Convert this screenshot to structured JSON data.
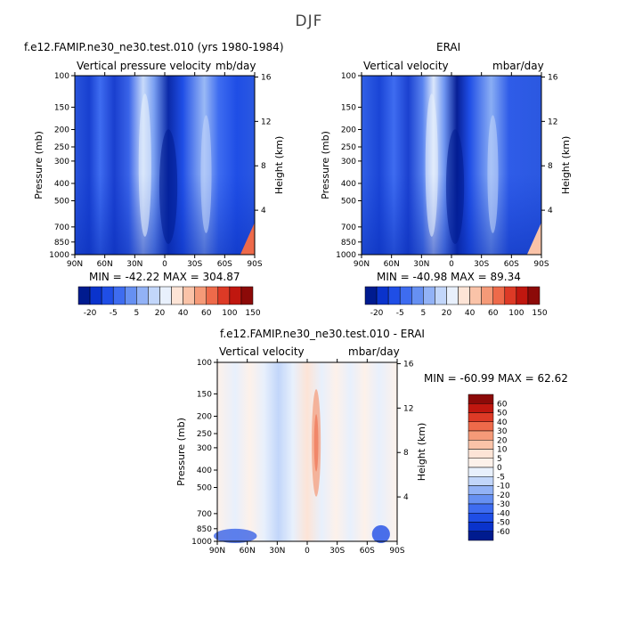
{
  "title": "DJF",
  "panels": [
    {
      "id": "model",
      "title": "f.e12.FAMIP.ne30_ne30.test.010 (yrs 1980-1984)",
      "left_label": "Vertical pressure velocity",
      "right_label": "mb/day",
      "stats": "MIN = -42.22   MAX = 304.87"
    },
    {
      "id": "obs",
      "title": "ERAI",
      "left_label": "Vertical velocity",
      "right_label": "mbar/day",
      "stats": "MIN = -40.98   MAX = 89.34"
    },
    {
      "id": "diff",
      "title": "f.e12.FAMIP.ne30_ne30.test.010 - ERAI",
      "left_label": "Vertical velocity",
      "right_label": "mbar/day",
      "stats": "MIN = -60.99   MAX =  62.62"
    }
  ],
  "axes": {
    "ylabel": "Pressure (mb)",
    "y2label": "Height (km)",
    "pressure_ticks": [
      "100",
      "150",
      "200",
      "250",
      "300",
      "400",
      "500",
      "700",
      "850",
      "1000"
    ],
    "height_ticks": [
      "16",
      "12",
      "8",
      "4"
    ],
    "lat_ticks": [
      "90N",
      "60N",
      "30N",
      "0",
      "30S",
      "60S",
      "90S"
    ]
  },
  "colorbar_abs": {
    "labels": [
      "-20",
      "-5",
      "5",
      "20",
      "40",
      "60",
      "100",
      "150"
    ],
    "colors": [
      "#001b8f",
      "#0a33cc",
      "#1f4ee6",
      "#3e6cf0",
      "#6690f2",
      "#92b2f6",
      "#c2d6fa",
      "#e8f0fc",
      "#fde4d6",
      "#fac3a8",
      "#f59a78",
      "#ee6a4a",
      "#dd3a26",
      "#c0170f",
      "#8c0a08"
    ]
  },
  "colorbar_diff": {
    "labels": [
      "60",
      "50",
      "40",
      "30",
      "20",
      "10",
      "5",
      "0",
      "-5",
      "-10",
      "-20",
      "-30",
      "-40",
      "-50",
      "-60"
    ],
    "colors": [
      "#8c0a08",
      "#c0170f",
      "#dd3a26",
      "#ee6a4a",
      "#f59a78",
      "#fac3a8",
      "#fde4d6",
      "#fdf1ea",
      "#e8f0fc",
      "#c2d6fa",
      "#92b2f6",
      "#6690f2",
      "#3e6cf0",
      "#1f4ee6",
      "#0a33cc",
      "#001b8f"
    ]
  },
  "chart_data": [
    {
      "type": "heatmap",
      "title": "f.e12.FAMIP.ne30_ne30.test.010 (yrs 1980-1984)",
      "xlabel": "",
      "ylabel": "Pressure (mb)",
      "x": [
        "90N",
        "60N",
        "30N",
        "0",
        "30S",
        "60S",
        "90S"
      ],
      "ylim": [
        1000,
        100
      ],
      "units": "mb/day",
      "min": -42.22,
      "max": 304.87
    },
    {
      "type": "heatmap",
      "title": "ERAI",
      "xlabel": "",
      "ylabel": "Pressure (mb)",
      "x": [
        "90N",
        "60N",
        "30N",
        "0",
        "30S",
        "60S",
        "90S"
      ],
      "ylim": [
        1000,
        100
      ],
      "units": "mbar/day",
      "min": -40.98,
      "max": 89.34
    },
    {
      "type": "heatmap",
      "title": "f.e12.FAMIP.ne30_ne30.test.010 - ERAI",
      "xlabel": "",
      "ylabel": "Pressure (mb)",
      "x": [
        "90N",
        "60N",
        "30N",
        "0",
        "30S",
        "60S",
        "90S"
      ],
      "ylim": [
        1000,
        100
      ],
      "units": "mbar/day",
      "min": -60.99,
      "max": 62.62
    }
  ]
}
